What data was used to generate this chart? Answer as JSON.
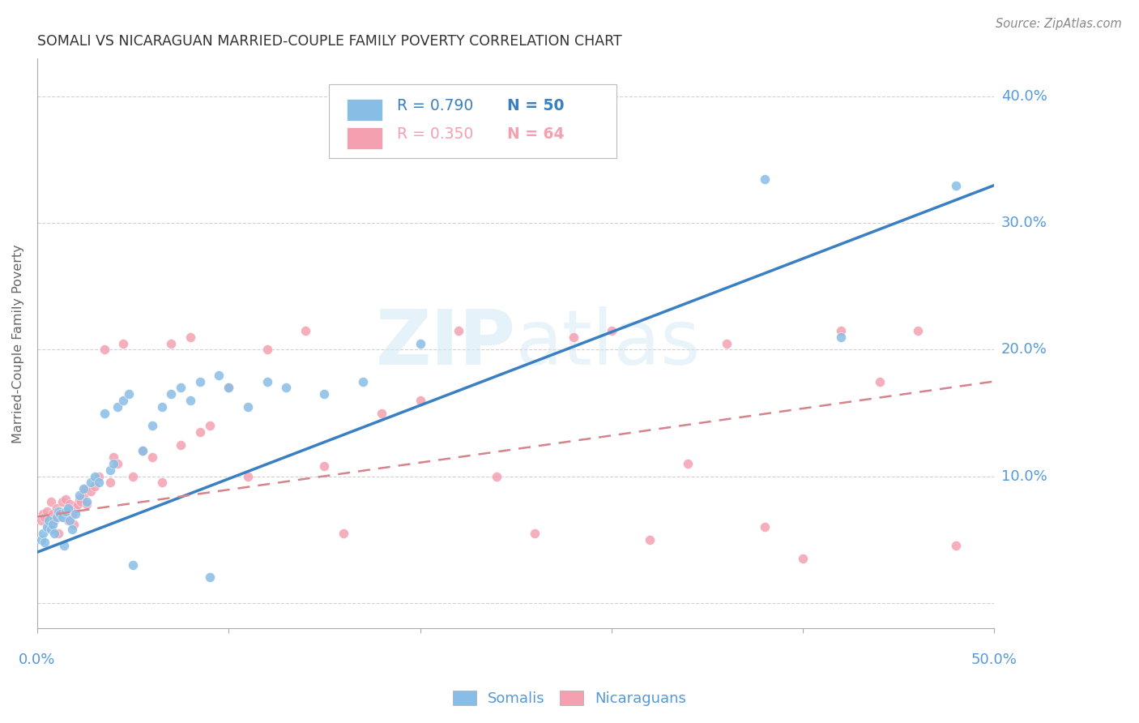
{
  "title": "SOMALI VS NICARAGUAN MARRIED-COUPLE FAMILY POVERTY CORRELATION CHART",
  "source": "Source: ZipAtlas.com",
  "ylabel": "Married-Couple Family Poverty",
  "xlim": [
    0.0,
    0.5
  ],
  "ylim": [
    -0.02,
    0.43
  ],
  "watermark_zip": "ZIP",
  "watermark_atlas": "atlas",
  "legend_somali_R": "R = 0.790",
  "legend_somali_N": "N = 50",
  "legend_nicaraguan_R": "R = 0.350",
  "legend_nicaraguan_N": "N = 64",
  "somali_color": "#88bde6",
  "nicaraguan_color": "#f4a0b0",
  "somali_line_color": "#3a7fc1",
  "nicaraguan_line_color": "#d4848a",
  "axis_label_color": "#5599dd",
  "grid_color": "#cccccc",
  "background_color": "#ffffff",
  "somali_points_x": [
    0.002,
    0.003,
    0.004,
    0.005,
    0.006,
    0.007,
    0.008,
    0.009,
    0.01,
    0.011,
    0.012,
    0.013,
    0.014,
    0.015,
    0.016,
    0.017,
    0.018,
    0.02,
    0.022,
    0.024,
    0.026,
    0.028,
    0.03,
    0.032,
    0.035,
    0.038,
    0.04,
    0.042,
    0.045,
    0.048,
    0.05,
    0.055,
    0.06,
    0.065,
    0.07,
    0.075,
    0.08,
    0.085,
    0.09,
    0.095,
    0.1,
    0.11,
    0.12,
    0.13,
    0.15,
    0.17,
    0.2,
    0.38,
    0.42,
    0.48
  ],
  "somali_points_y": [
    0.05,
    0.055,
    0.048,
    0.06,
    0.065,
    0.058,
    0.062,
    0.055,
    0.068,
    0.072,
    0.07,
    0.068,
    0.045,
    0.072,
    0.075,
    0.065,
    0.058,
    0.07,
    0.085,
    0.09,
    0.08,
    0.095,
    0.1,
    0.095,
    0.15,
    0.105,
    0.11,
    0.155,
    0.16,
    0.165,
    0.03,
    0.12,
    0.14,
    0.155,
    0.165,
    0.17,
    0.16,
    0.175,
    0.02,
    0.18,
    0.17,
    0.155,
    0.175,
    0.17,
    0.165,
    0.175,
    0.205,
    0.335,
    0.21,
    0.33
  ],
  "nicaraguan_points_x": [
    0.002,
    0.003,
    0.004,
    0.005,
    0.006,
    0.007,
    0.008,
    0.009,
    0.01,
    0.011,
    0.012,
    0.013,
    0.014,
    0.015,
    0.016,
    0.017,
    0.018,
    0.019,
    0.02,
    0.021,
    0.022,
    0.023,
    0.024,
    0.025,
    0.026,
    0.028,
    0.03,
    0.032,
    0.035,
    0.038,
    0.04,
    0.042,
    0.045,
    0.05,
    0.055,
    0.06,
    0.065,
    0.07,
    0.075,
    0.08,
    0.085,
    0.09,
    0.1,
    0.11,
    0.12,
    0.14,
    0.15,
    0.16,
    0.18,
    0.2,
    0.22,
    0.24,
    0.26,
    0.28,
    0.3,
    0.32,
    0.34,
    0.36,
    0.38,
    0.4,
    0.42,
    0.44,
    0.46,
    0.48
  ],
  "nicaraguan_points_y": [
    0.065,
    0.07,
    0.068,
    0.072,
    0.06,
    0.08,
    0.07,
    0.065,
    0.075,
    0.055,
    0.072,
    0.08,
    0.068,
    0.082,
    0.065,
    0.078,
    0.07,
    0.062,
    0.075,
    0.078,
    0.082,
    0.08,
    0.085,
    0.09,
    0.078,
    0.088,
    0.092,
    0.1,
    0.2,
    0.095,
    0.115,
    0.11,
    0.205,
    0.1,
    0.12,
    0.115,
    0.095,
    0.205,
    0.125,
    0.21,
    0.135,
    0.14,
    0.17,
    0.1,
    0.2,
    0.215,
    0.108,
    0.055,
    0.15,
    0.16,
    0.215,
    0.1,
    0.055,
    0.21,
    0.215,
    0.05,
    0.11,
    0.205,
    0.06,
    0.035,
    0.215,
    0.175,
    0.215,
    0.045
  ],
  "somali_trend_x": [
    0.0,
    0.5
  ],
  "somali_trend_y": [
    0.04,
    0.33
  ],
  "nicaraguan_trend_x": [
    0.0,
    0.5
  ],
  "nicaraguan_trend_y": [
    0.068,
    0.175
  ]
}
